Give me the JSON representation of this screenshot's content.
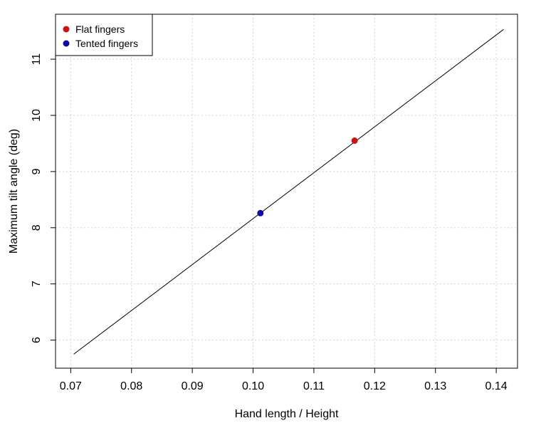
{
  "chart_data": {
    "type": "scatter",
    "xlabel": "Hand length / Height",
    "ylabel": "Maximum tilt angle (deg)",
    "xlim": [
      0.0675,
      0.1435
    ],
    "ylim": [
      5.5,
      11.8
    ],
    "x_ticks": [
      0.07,
      0.08,
      0.09,
      0.1,
      0.11,
      0.12,
      0.13,
      0.14
    ],
    "x_tick_labels": [
      "0.07",
      "0.08",
      "0.09",
      "0.10",
      "0.11",
      "0.12",
      "0.13",
      "0.14"
    ],
    "y_ticks": [
      6,
      7,
      8,
      9,
      10,
      11
    ],
    "y_tick_labels": [
      "6",
      "7",
      "8",
      "9",
      "10",
      "11"
    ],
    "grid": true,
    "legend": "top-left",
    "series": [
      {
        "name": "Flat fingers",
        "color": "#cc1111",
        "x": [
          0.1167
        ],
        "y": [
          9.55
        ]
      },
      {
        "name": "Tented fingers",
        "color": "#0a0aa8",
        "x": [
          0.1012
        ],
        "y": [
          8.26
        ]
      }
    ],
    "line": {
      "color": "#000000",
      "x": [
        0.0705,
        0.1412
      ],
      "y": [
        5.75,
        11.53
      ]
    }
  }
}
